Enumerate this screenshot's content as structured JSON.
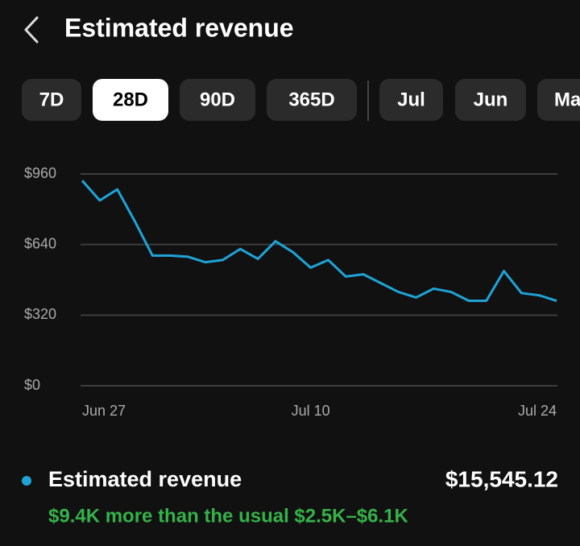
{
  "header": {
    "title": "Estimated revenue"
  },
  "tabs": [
    "7D",
    "28D",
    "90D",
    "365D",
    "Jul",
    "Jun",
    "May"
  ],
  "selected_tab": "28D",
  "chart_data": {
    "type": "line",
    "categories": [
      "Jun 27",
      null,
      null,
      null,
      null,
      null,
      null,
      null,
      null,
      null,
      null,
      null,
      null,
      "Jul 10",
      null,
      null,
      null,
      null,
      null,
      null,
      null,
      null,
      null,
      null,
      null,
      null,
      null,
      "Jul 24"
    ],
    "series": [
      {
        "name": "Estimated revenue",
        "color": "#1fa3d6",
        "values": [
          930,
          840,
          890,
          745,
          590,
          590,
          585,
          560,
          570,
          620,
          575,
          655,
          605,
          535,
          570,
          495,
          505,
          465,
          425,
          400,
          440,
          425,
          385,
          385,
          520,
          420,
          410,
          385
        ]
      }
    ],
    "ylim": [
      0,
      960
    ],
    "yticks": [
      {
        "value": 0,
        "label": "$0"
      },
      {
        "value": 320,
        "label": "$320"
      },
      {
        "value": 640,
        "label": "$640"
      },
      {
        "value": 960,
        "label": "$960"
      }
    ],
    "grid": true
  },
  "summary": {
    "label": "Estimated revenue",
    "total": "$15,545.12",
    "comparison": "$9.4K more than the usual $2.5K–$6.1K"
  }
}
